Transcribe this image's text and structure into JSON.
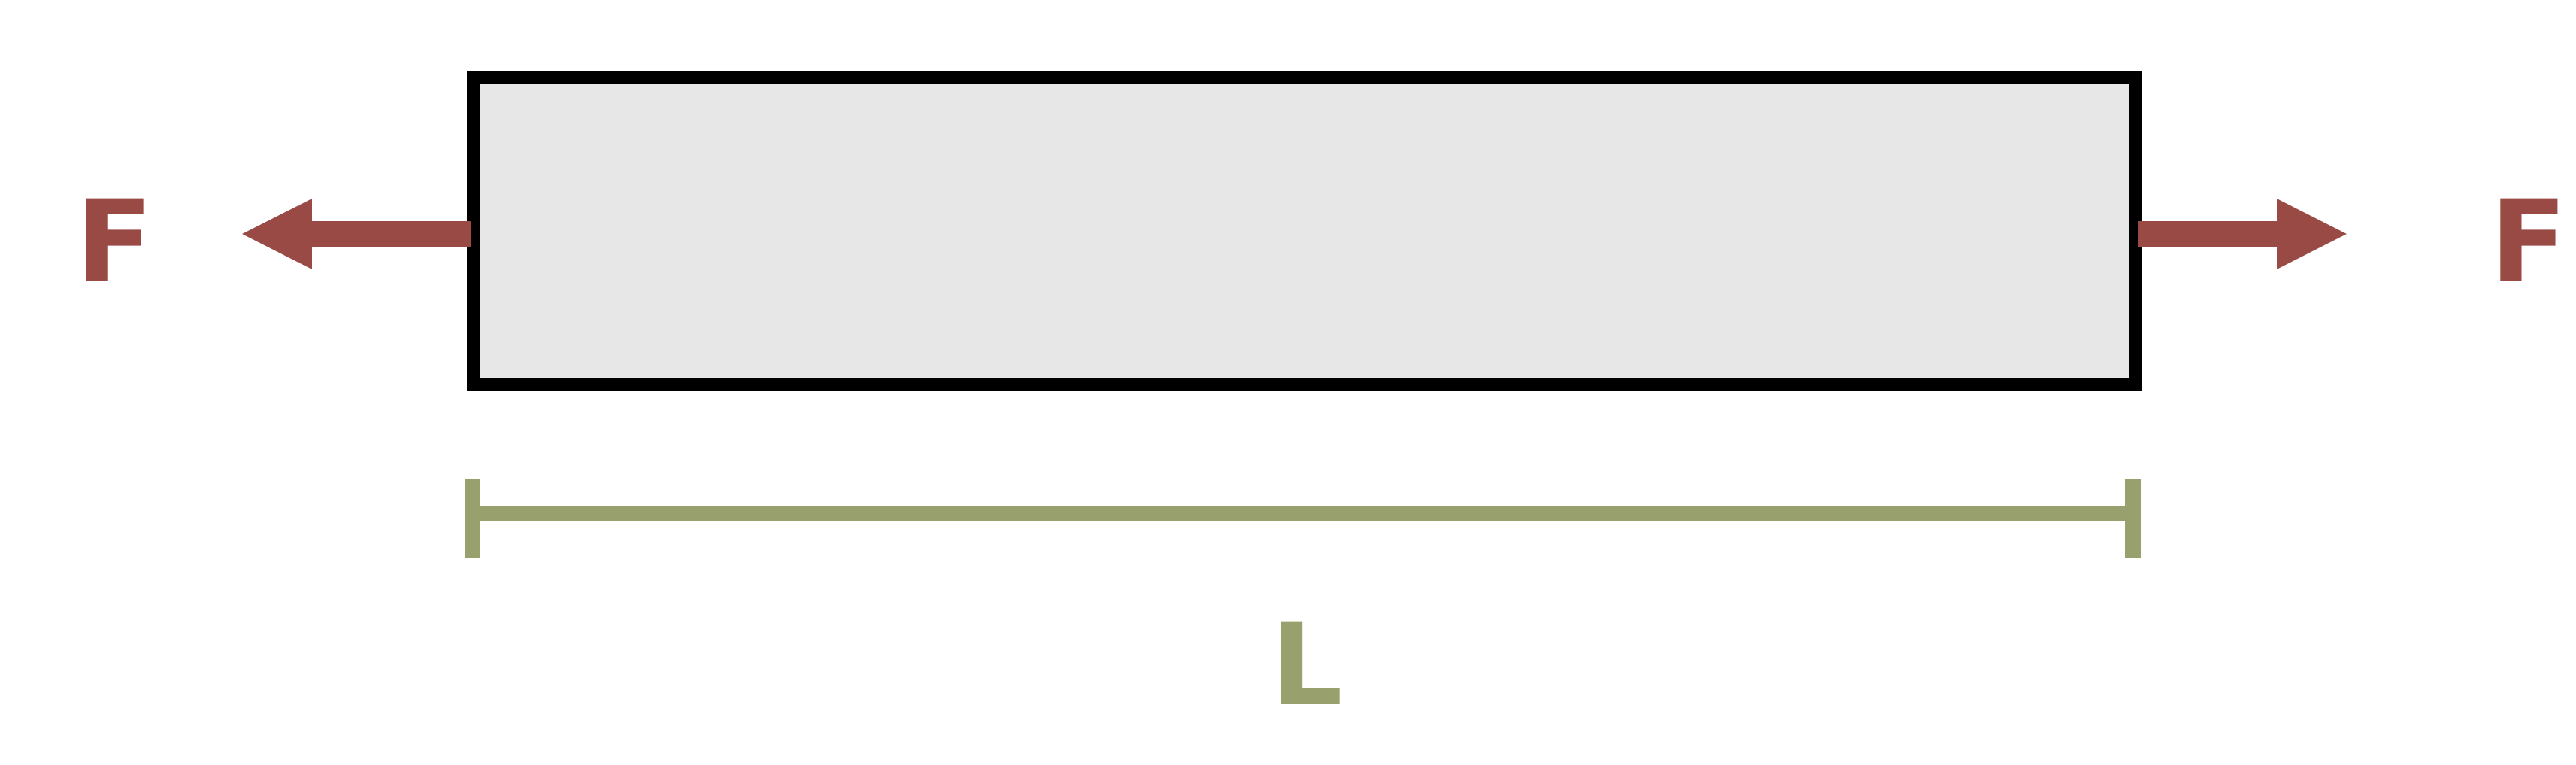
{
  "colors": {
    "background": "#ffffff",
    "bar_fill": "#e7e7e7",
    "bar_stroke": "#000000",
    "force": "#9a4a44",
    "dimension": "#98a16d"
  },
  "forces": {
    "left_label": "F",
    "right_label": "F"
  },
  "dimension": {
    "label": "L"
  }
}
